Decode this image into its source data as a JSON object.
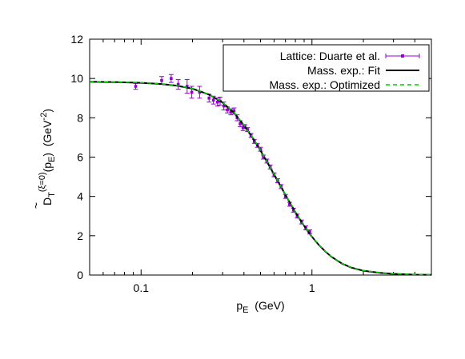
{
  "chart_data": {
    "type": "line",
    "x_scale": "log",
    "xlim": [
      0.05,
      5
    ],
    "ylim": [
      0,
      12
    ],
    "x_ticks": [
      0.1,
      1
    ],
    "x_tick_labels": [
      "0.1",
      "1"
    ],
    "y_ticks": [
      0,
      2,
      4,
      6,
      8,
      10,
      12
    ],
    "y_tick_labels": [
      "0",
      "2",
      "4",
      "6",
      "8",
      "10",
      "12"
    ],
    "xlabel": {
      "main": "p",
      "sub": "E",
      "unit": "  (GeV)"
    },
    "ylabel": {
      "main": "D",
      "sub": "T",
      "sup": "(ξ=0)",
      "arg_open": "(p",
      "arg_sub": "E",
      "arg_close": ")",
      "unit_open": "  (GeV",
      "unit_sup": "-2",
      "unit_close": ")"
    },
    "grid": false,
    "legend_position": "top-right",
    "series": [
      {
        "name": "Lattice: Duarte et al.",
        "kind": "points-errorbars",
        "color": "#9400d3",
        "x": [
          0.093,
          0.132,
          0.15,
          0.165,
          0.186,
          0.198,
          0.22,
          0.25,
          0.265,
          0.28,
          0.29,
          0.305,
          0.32,
          0.335,
          0.35,
          0.365,
          0.38,
          0.395,
          0.405,
          0.42,
          0.44,
          0.46,
          0.48,
          0.5,
          0.52,
          0.545,
          0.57,
          0.6,
          0.63,
          0.66,
          0.7,
          0.74,
          0.78,
          0.82,
          0.87,
          0.92,
          0.97
        ],
        "y": [
          9.6,
          9.9,
          10.0,
          9.7,
          9.6,
          9.3,
          9.3,
          9.0,
          8.9,
          8.8,
          8.85,
          8.6,
          8.4,
          8.3,
          8.35,
          8.0,
          7.7,
          7.5,
          7.55,
          7.4,
          7.1,
          6.8,
          6.6,
          6.4,
          6.0,
          5.8,
          5.5,
          5.1,
          4.8,
          4.5,
          4.0,
          3.6,
          3.3,
          3.0,
          2.7,
          2.4,
          2.2
        ],
        "err": [
          0.15,
          0.2,
          0.2,
          0.25,
          0.35,
          0.3,
          0.3,
          0.2,
          0.2,
          0.2,
          0.2,
          0.2,
          0.15,
          0.15,
          0.15,
          0.15,
          0.15,
          0.15,
          0.1,
          0.1,
          0.1,
          0.1,
          0.1,
          0.1,
          0.1,
          0.1,
          0.1,
          0.1,
          0.1,
          0.1,
          0.1,
          0.1,
          0.1,
          0.1,
          0.1,
          0.1,
          0.1
        ]
      },
      {
        "name": "Mass. exp.: Fit",
        "kind": "line",
        "color": "#000000",
        "x": [
          0.05,
          0.07,
          0.1,
          0.13,
          0.16,
          0.2,
          0.25,
          0.3,
          0.35,
          0.4,
          0.45,
          0.5,
          0.55,
          0.6,
          0.65,
          0.7,
          0.75,
          0.8,
          0.85,
          0.9,
          0.95,
          1.0,
          1.1,
          1.2,
          1.3,
          1.5,
          1.7,
          2.0,
          2.5,
          3.0,
          4.0,
          5.0
        ],
        "y": [
          9.83,
          9.82,
          9.78,
          9.72,
          9.64,
          9.48,
          9.18,
          8.78,
          8.25,
          7.62,
          6.98,
          6.33,
          5.71,
          5.12,
          4.58,
          4.08,
          3.62,
          3.2,
          2.83,
          2.5,
          2.2,
          1.95,
          1.52,
          1.19,
          0.93,
          0.58,
          0.38,
          0.22,
          0.11,
          0.06,
          0.02,
          0.01
        ]
      },
      {
        "name": "Mass. exp.: Optimized",
        "kind": "dashed-line",
        "color": "#00cc00",
        "x": [
          0.05,
          0.07,
          0.1,
          0.13,
          0.16,
          0.2,
          0.25,
          0.3,
          0.35,
          0.4,
          0.45,
          0.5,
          0.55,
          0.6,
          0.65,
          0.7,
          0.75,
          0.8,
          0.85,
          0.9,
          0.95,
          1.0,
          1.1,
          1.2,
          1.3,
          1.5,
          1.7,
          2.0,
          2.5,
          3.0,
          4.0,
          5.0
        ],
        "y": [
          9.84,
          9.83,
          9.79,
          9.73,
          9.65,
          9.49,
          9.19,
          8.79,
          8.26,
          7.63,
          6.99,
          6.34,
          5.72,
          5.13,
          4.59,
          4.09,
          3.63,
          3.21,
          2.84,
          2.51,
          2.21,
          1.96,
          1.53,
          1.2,
          0.94,
          0.59,
          0.39,
          0.23,
          0.12,
          0.07,
          0.03,
          0.01
        ]
      }
    ]
  }
}
